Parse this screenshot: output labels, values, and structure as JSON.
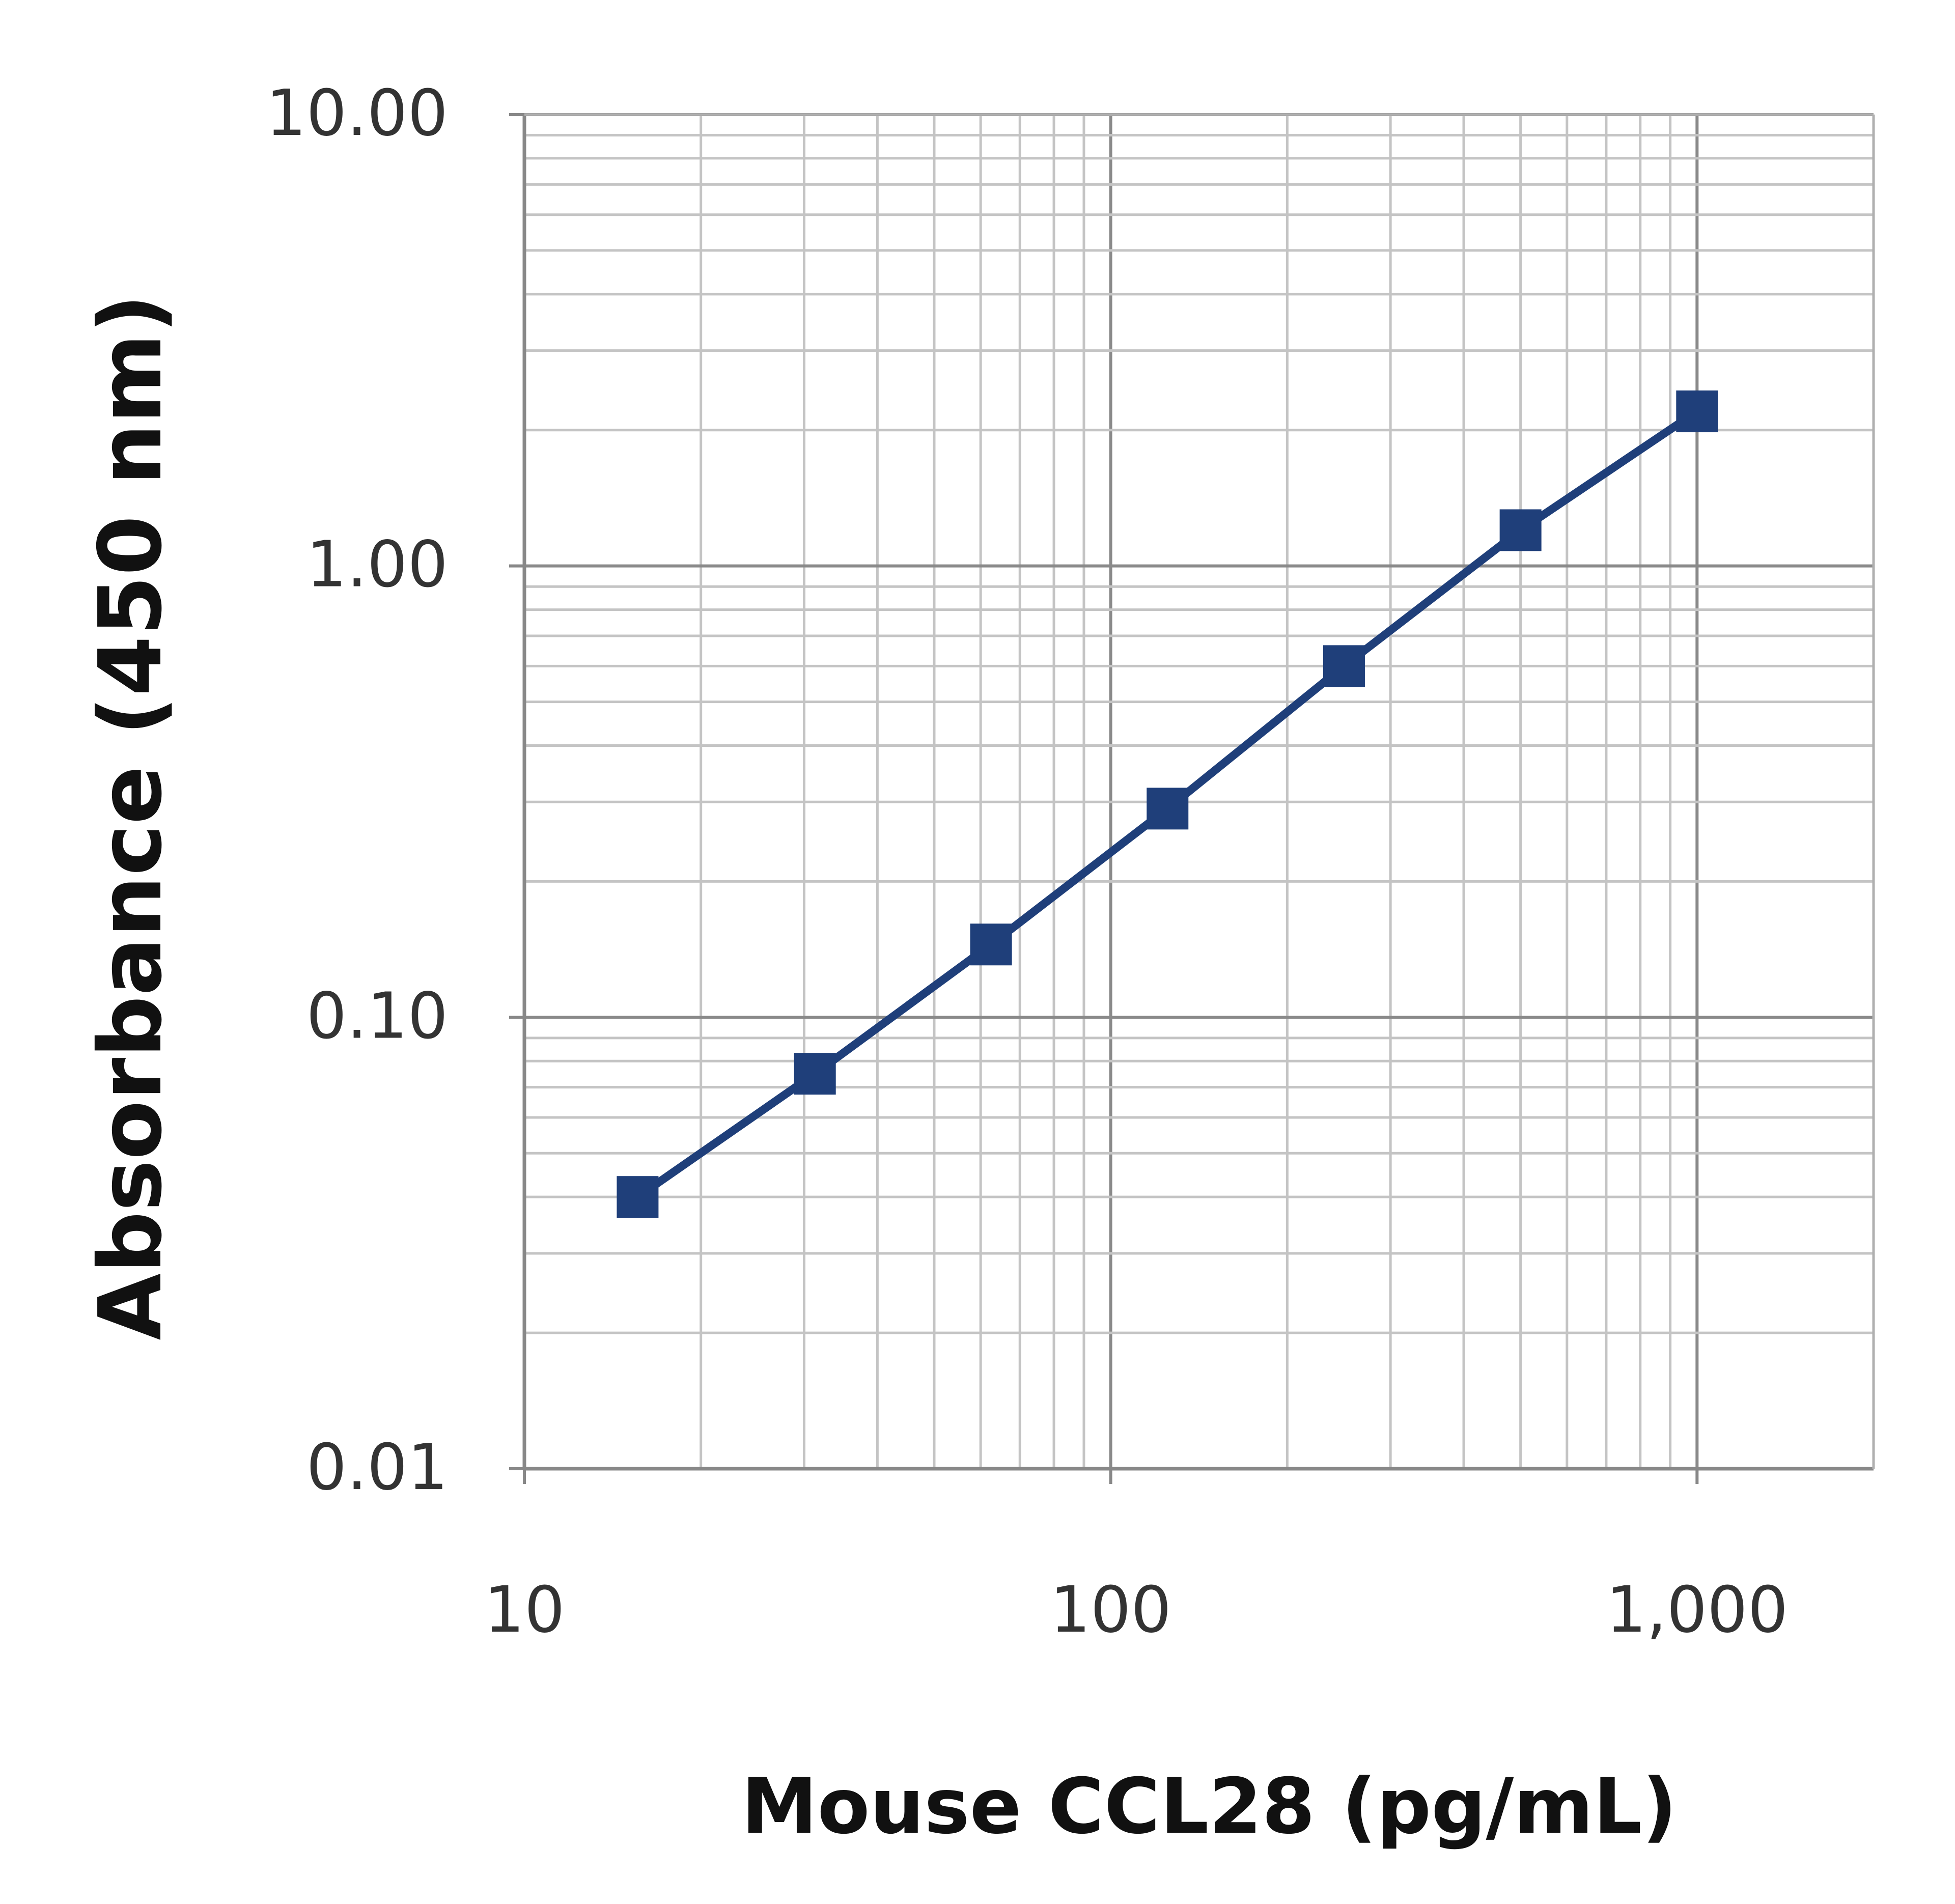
{
  "chart_data": {
    "type": "line",
    "title": "",
    "xlabel": "Mouse CCL28 (pg/mL)",
    "ylabel": "Absorbance (450 nm)",
    "x_scale": "log",
    "y_scale": "log",
    "xlim": [
      10,
      2000
    ],
    "ylim": [
      0.01,
      10
    ],
    "x_ticks": [
      {
        "value": 10,
        "label": "10"
      },
      {
        "value": 100,
        "label": "100"
      },
      {
        "value": 1000,
        "label": "1,000"
      }
    ],
    "y_ticks": [
      {
        "value": 10,
        "label": "10.00"
      },
      {
        "value": 1,
        "label": "1.00"
      },
      {
        "value": 0.1,
        "label": "0.10"
      },
      {
        "value": 0.01,
        "label": "0.01"
      }
    ],
    "grid": true,
    "legend": "none",
    "marker": "square",
    "series": [
      {
        "color": "#1f3f7a",
        "points": [
          {
            "x": 15.6,
            "y": 0.04
          },
          {
            "x": 31.3,
            "y": 0.075
          },
          {
            "x": 62.5,
            "y": 0.145
          },
          {
            "x": 125,
            "y": 0.29
          },
          {
            "x": 250,
            "y": 0.6
          },
          {
            "x": 500,
            "y": 1.2
          },
          {
            "x": 1000,
            "y": 2.2
          }
        ]
      }
    ]
  }
}
